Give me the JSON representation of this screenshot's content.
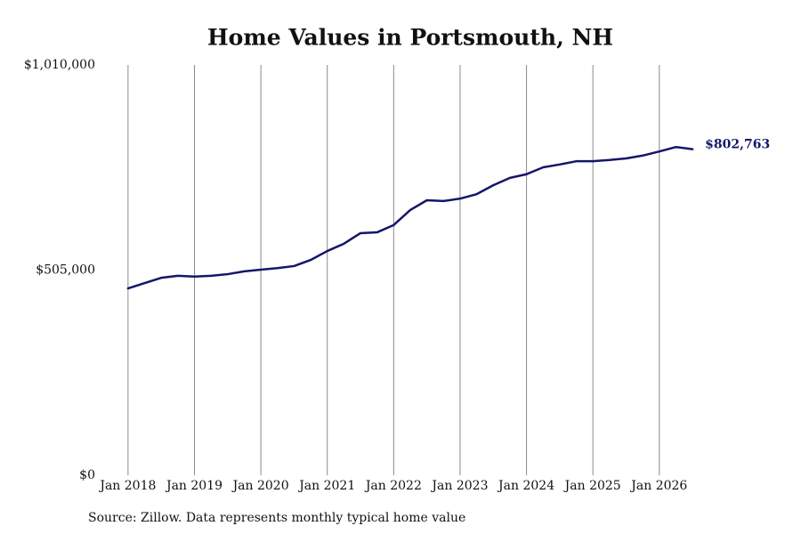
{
  "chart_data": {
    "type": "line",
    "title": "Home Values in Portsmouth, NH",
    "source": "Source: Zillow. Data represents monthly typical home value",
    "x": [
      "2018-01",
      "2018-04",
      "2018-07",
      "2018-10",
      "2019-01",
      "2019-04",
      "2019-07",
      "2019-10",
      "2020-01",
      "2020-04",
      "2020-07",
      "2020-10",
      "2021-01",
      "2021-04",
      "2021-07",
      "2021-10",
      "2022-01",
      "2022-04",
      "2022-07",
      "2022-10",
      "2023-01",
      "2023-04",
      "2023-07",
      "2023-10",
      "2024-01",
      "2024-04",
      "2024-07",
      "2024-10",
      "2025-01",
      "2025-04",
      "2025-07",
      "2025-10",
      "2026-01",
      "2026-04",
      "2026-07"
    ],
    "series": [
      {
        "name": "Typical home value",
        "color": "#15156a",
        "values": [
          460000,
          473000,
          486000,
          491000,
          489000,
          491000,
          495000,
          502000,
          506000,
          510000,
          515000,
          530000,
          552000,
          570000,
          596000,
          598000,
          616000,
          653000,
          677000,
          675000,
          681000,
          692000,
          714000,
          732000,
          741000,
          758000,
          765000,
          773000,
          773000,
          776000,
          780000,
          787000,
          797000,
          808000,
          802763
        ],
        "value_labels": [
          null,
          null,
          null,
          null,
          null,
          null,
          null,
          null,
          null,
          null,
          null,
          null,
          null,
          null,
          null,
          null,
          null,
          null,
          null,
          null,
          null,
          null,
          null,
          null,
          null,
          null,
          null,
          null,
          null,
          null,
          null,
          null,
          null,
          null,
          "$802,763"
        ]
      }
    ],
    "xlim": [
      "2017-09",
      "2026-11"
    ],
    "xticks": [
      {
        "value": "2018-01",
        "label": "Jan 2018"
      },
      {
        "value": "2019-01",
        "label": "Jan 2019"
      },
      {
        "value": "2020-01",
        "label": "Jan 2020"
      },
      {
        "value": "2021-01",
        "label": "Jan 2021"
      },
      {
        "value": "2022-01",
        "label": "Jan 2022"
      },
      {
        "value": "2023-01",
        "label": "Jan 2023"
      },
      {
        "value": "2024-01",
        "label": "Jan 2024"
      },
      {
        "value": "2025-01",
        "label": "Jan 2025"
      },
      {
        "value": "2026-01",
        "label": "Jan 2026"
      }
    ],
    "ylim": [
      0,
      1010000
    ],
    "yticks": [
      {
        "value": 0,
        "label": "$0"
      },
      {
        "value": 505000,
        "label": "$505,000"
      },
      {
        "value": 1010000,
        "label": "$1,010,000"
      }
    ],
    "grid": "x"
  }
}
